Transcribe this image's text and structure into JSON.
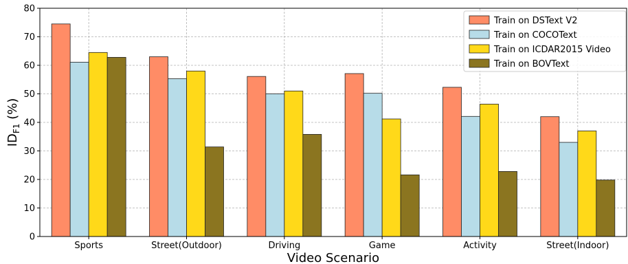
{
  "chart_data": {
    "type": "bar",
    "title": "",
    "xlabel": "Video Scenario",
    "ylabel_main": "ID",
    "ylabel_sub": "F1",
    "ylabel_suffix": " (%)",
    "ylim": [
      0,
      80
    ],
    "yticks": [
      0,
      10,
      20,
      30,
      40,
      50,
      60,
      70,
      80
    ],
    "grid": true,
    "legend_position": "top-right",
    "categories": [
      "Sports",
      "Street(Outdoor)",
      "Driving",
      "Game",
      "Activity",
      "Street(Indoor)"
    ],
    "series": [
      {
        "name": "Train on DSText V2",
        "color": "#ff8c66",
        "values": [
          74.5,
          63.0,
          56.1,
          57.1,
          52.3,
          42.0
        ]
      },
      {
        "name": "Train on COCOText",
        "color": "#b7dce8",
        "values": [
          61.1,
          55.3,
          50.0,
          50.2,
          42.1,
          33.0
        ]
      },
      {
        "name": "Train on ICDAR2015 Video",
        "color": "#ffd919",
        "values": [
          64.5,
          58.0,
          51.0,
          41.2,
          46.4,
          37.0
        ]
      },
      {
        "name": "Train on BOVText",
        "color": "#8b7520",
        "values": [
          62.8,
          31.4,
          35.8,
          21.6,
          22.8,
          19.8
        ]
      }
    ]
  }
}
